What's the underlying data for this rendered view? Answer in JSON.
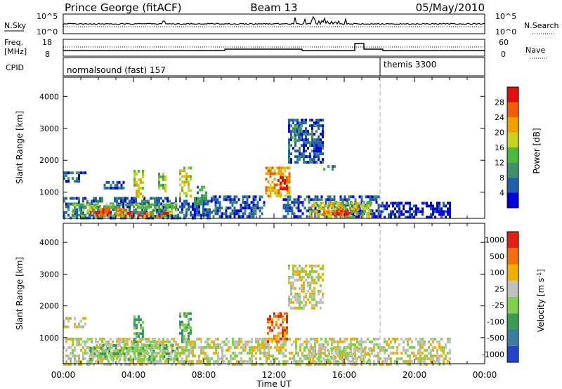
{
  "header": {
    "station": "Prince George (fitACF)",
    "beam": "Beam 13",
    "date": "05/May/2010"
  },
  "panels": {
    "nsky": {
      "label": "N.Sky",
      "tick_top": "10^5",
      "tick_bottom": "10^0",
      "right_label": "N.Search",
      "right_tick_top": "10^5",
      "right_tick_bottom": "10^0"
    },
    "freq": {
      "label_line1": "Freq.",
      "label_line2": "[MHz]",
      "tick_top": "18",
      "tick_bottom": "8",
      "right_label": "Nave",
      "right_tick_top": "60",
      "right_tick_bottom": "0"
    },
    "cpid": {
      "label": "CPID",
      "mode1": "normalsound (fast) 157",
      "mode2": "themis 3300"
    }
  },
  "chart_data": [
    {
      "type": "heatmap",
      "title": "",
      "ylabel": "Slant Range [km]",
      "xlabel": "Time UT",
      "x_ticks": [
        "00:00",
        "04:00",
        "08:00",
        "12:00",
        "16:00",
        "20:00",
        "00:00"
      ],
      "y_ticks": [
        "1000",
        "2000",
        "3000",
        "4000"
      ],
      "ylim": [
        180,
        4600
      ],
      "xlim_hours": [
        0,
        24
      ],
      "colorbar": {
        "label": "Power [dB]",
        "ticks": [
          "4",
          "8",
          "12",
          "16",
          "20",
          "24",
          "28"
        ],
        "colors": [
          "#0000dd",
          "#1f5fa8",
          "#3f8f6a",
          "#4cbb3c",
          "#c8d21e",
          "#f0a000",
          "#f06000",
          "#e01010"
        ]
      },
      "regions": [
        {
          "t0": 0.0,
          "t1": 1.3,
          "r0": 1350,
          "r1": 1650,
          "level": 1
        },
        {
          "t0": 2.3,
          "t1": 3.5,
          "r0": 1100,
          "r1": 1350,
          "level": 1
        },
        {
          "t0": 0.0,
          "t1": 8.5,
          "r0": 200,
          "r1": 850,
          "level": 1
        },
        {
          "t0": 0.5,
          "t1": 6.5,
          "r0": 250,
          "r1": 650,
          "level": 3
        },
        {
          "t0": 1.5,
          "t1": 3.5,
          "r0": 250,
          "r1": 500,
          "level": 6
        },
        {
          "t0": 3.5,
          "t1": 6.0,
          "r0": 220,
          "r1": 380,
          "level": 7
        },
        {
          "t0": 4.0,
          "t1": 4.6,
          "r0": 900,
          "r1": 1700,
          "level": 4
        },
        {
          "t0": 5.4,
          "t1": 5.8,
          "r0": 1000,
          "r1": 1700,
          "level": 3
        },
        {
          "t0": 6.6,
          "t1": 7.3,
          "r0": 900,
          "r1": 1800,
          "level": 4
        },
        {
          "t0": 7.6,
          "t1": 8.2,
          "r0": 600,
          "r1": 1200,
          "level": 2
        },
        {
          "t0": 8.5,
          "t1": 11.5,
          "r0": 200,
          "r1": 900,
          "level": 1
        },
        {
          "t0": 11.5,
          "t1": 12.9,
          "r0": 900,
          "r1": 1800,
          "level": 5
        },
        {
          "t0": 12.2,
          "t1": 12.8,
          "r0": 1100,
          "r1": 1500,
          "level": 7
        },
        {
          "t0": 12.8,
          "t1": 14.8,
          "r0": 1900,
          "r1": 3300,
          "level": 1
        },
        {
          "t0": 13.0,
          "t1": 13.6,
          "r0": 2600,
          "r1": 3100,
          "level": 2
        },
        {
          "t0": 14.8,
          "t1": 15.5,
          "r0": 1700,
          "r1": 1850,
          "level": 2
        },
        {
          "t0": 12.5,
          "t1": 18.0,
          "r0": 200,
          "r1": 900,
          "level": 1
        },
        {
          "t0": 14.0,
          "t1": 17.5,
          "r0": 220,
          "r1": 700,
          "level": 4
        },
        {
          "t0": 14.8,
          "t1": 16.8,
          "r0": 250,
          "r1": 500,
          "level": 6
        },
        {
          "t0": 15.3,
          "t1": 16.2,
          "r0": 300,
          "r1": 450,
          "level": 7
        },
        {
          "t0": 18.0,
          "t1": 22.0,
          "r0": 200,
          "r1": 700,
          "level": 0
        }
      ]
    },
    {
      "type": "heatmap",
      "title": "",
      "ylabel": "Slant Range [km]",
      "xlabel": "Time UT",
      "x_ticks": [
        "00:00",
        "04:00",
        "08:00",
        "12:00",
        "16:00",
        "20:00",
        "00:00"
      ],
      "y_ticks": [
        "1000",
        "2000",
        "3000",
        "4000"
      ],
      "ylim": [
        180,
        4600
      ],
      "xlim_hours": [
        0,
        24
      ],
      "colorbar": {
        "label": "Velocity [m s^-1]",
        "ticks": [
          "1000",
          "500",
          "100",
          "25",
          "-25",
          "-100",
          "-500",
          "-1000"
        ],
        "colors": [
          "#2244cc",
          "#3a7ea0",
          "#3d9a55",
          "#7fd04a",
          "#c0c0c0",
          "#f0b000",
          "#f07010",
          "#e02010"
        ]
      },
      "regions": [
        {
          "t0": 0.0,
          "t1": 1.3,
          "r0": 1350,
          "r1": 1650,
          "level": 4
        },
        {
          "t0": 0.0,
          "t1": 22.0,
          "r0": 200,
          "r1": 1000,
          "level": 4
        },
        {
          "t0": 1.5,
          "t1": 6.5,
          "r0": 300,
          "r1": 800,
          "level": 3
        },
        {
          "t0": 4.0,
          "t1": 4.6,
          "r0": 900,
          "r1": 1700,
          "level": 2
        },
        {
          "t0": 6.6,
          "t1": 7.3,
          "r0": 900,
          "r1": 1800,
          "level": 2
        },
        {
          "t0": 11.6,
          "t1": 12.8,
          "r0": 900,
          "r1": 1800,
          "level": 6
        },
        {
          "t0": 12.8,
          "t1": 14.8,
          "r0": 1900,
          "r1": 3300,
          "level": 4
        },
        {
          "t0": 14.0,
          "t1": 17.5,
          "r0": 250,
          "r1": 700,
          "level": 4
        }
      ]
    }
  ]
}
